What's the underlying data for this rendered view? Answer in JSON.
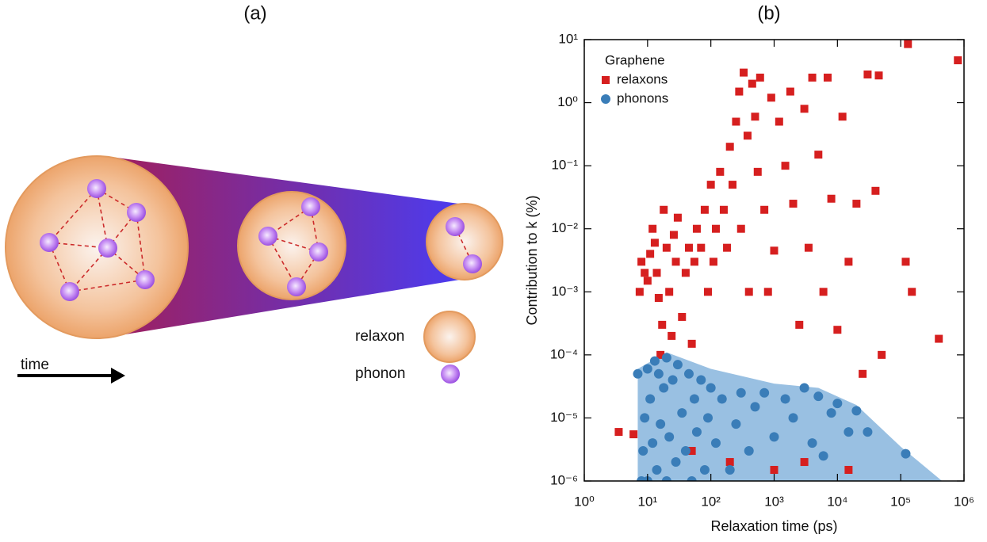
{
  "panels": [
    "(a)",
    "(b)"
  ],
  "diagram": {
    "legend": [
      "relaxon",
      "phonon"
    ],
    "arrow_label": "time"
  },
  "chart_data": {
    "type": "scatter",
    "x_label": "Relaxation time (ps)",
    "y_label": "Contribution to k (%)",
    "xscale": "log",
    "yscale": "log",
    "xlim": [
      1,
      1000000
    ],
    "ylim": [
      1e-06,
      10
    ],
    "xticks": [
      {
        "value": 1,
        "label": "10⁰"
      },
      {
        "value": 10,
        "label": "10¹"
      },
      {
        "value": 100,
        "label": "10²"
      },
      {
        "value": 1000,
        "label": "10³"
      },
      {
        "value": 10000,
        "label": "10⁴"
      },
      {
        "value": 100000,
        "label": "10⁵"
      },
      {
        "value": 1000000,
        "label": "10⁶"
      }
    ],
    "yticks": [
      {
        "value": 1e-06,
        "label": "10⁻⁶"
      },
      {
        "value": 1e-05,
        "label": "10⁻⁵"
      },
      {
        "value": 0.0001,
        "label": "10⁻⁴"
      },
      {
        "value": 0.001,
        "label": "10⁻³"
      },
      {
        "value": 0.01,
        "label": "10⁻²"
      },
      {
        "value": 0.1,
        "label": "10⁻¹"
      },
      {
        "value": 1,
        "label": "10⁰"
      },
      {
        "value": 10,
        "label": "10¹"
      }
    ],
    "legend_title": "Graphene",
    "legend": "upper left",
    "shaded_region": {
      "color": "#93bde0",
      "x": [
        7,
        7,
        20,
        100,
        1000,
        5000,
        20000,
        100000,
        450000
      ],
      "values": [
        1e-06,
        6e-05,
        0.00011,
        6e-05,
        3.5e-05,
        3e-05,
        1.6e-05,
        3.5e-06,
        1e-06
      ]
    },
    "series": [
      {
        "name": "relaxons",
        "color": "#d61f1f",
        "marker": "square",
        "x": [
          3.5,
          6,
          7.5,
          8,
          9,
          10,
          11,
          12,
          13,
          14,
          15,
          16,
          17,
          18,
          20,
          22,
          24,
          26,
          28,
          30,
          35,
          40,
          45,
          50,
          55,
          60,
          70,
          80,
          90,
          100,
          110,
          120,
          140,
          160,
          180,
          200,
          220,
          250,
          280,
          300,
          330,
          380,
          400,
          450,
          500,
          550,
          600,
          700,
          800,
          900,
          1000,
          1200,
          1500,
          1800,
          2000,
          2500,
          3000,
          3500,
          4000,
          5000,
          6000,
          7000,
          8000,
          10000,
          12000,
          15000,
          20000,
          25000,
          30000,
          40000,
          45000,
          50000,
          120000,
          130000,
          150000,
          400000,
          800000,
          1000,
          3000,
          15000,
          200,
          50
        ],
        "values": [
          6e-06,
          5.5e-06,
          0.001,
          0.003,
          0.002,
          0.0015,
          0.004,
          0.01,
          0.006,
          0.002,
          0.0008,
          0.0001,
          0.0003,
          0.02,
          0.005,
          0.001,
          0.0002,
          0.008,
          0.003,
          0.015,
          0.0004,
          0.002,
          0.005,
          0.00015,
          0.003,
          0.01,
          0.005,
          0.02,
          0.001,
          0.05,
          0.003,
          0.01,
          0.08,
          0.02,
          0.005,
          0.2,
          0.05,
          0.5,
          1.5,
          0.01,
          3,
          0.3,
          0.001,
          2,
          0.6,
          0.08,
          2.5,
          0.02,
          0.001,
          1.2,
          0.0045,
          0.5,
          0.1,
          1.5,
          0.025,
          0.0003,
          0.8,
          0.005,
          2.5,
          0.15,
          0.001,
          2.5,
          0.03,
          0.00025,
          0.6,
          0.003,
          0.025,
          5e-05,
          2.8,
          0.04,
          2.7,
          0.0001,
          0.003,
          8.5,
          0.001,
          0.00018,
          4.7,
          1.5e-06,
          2e-06,
          1.5e-06,
          2e-06,
          3e-06
        ]
      },
      {
        "name": "phonons",
        "color": "#3a7db8",
        "marker": "circle",
        "x": [
          7,
          8,
          8.5,
          9,
          10,
          10,
          11,
          12,
          13,
          14,
          15,
          16,
          18,
          20,
          20,
          22,
          25,
          28,
          30,
          35,
          40,
          45,
          50,
          55,
          60,
          70,
          80,
          90,
          100,
          120,
          150,
          200,
          250,
          300,
          400,
          500,
          700,
          1000,
          1500,
          2000,
          3000,
          4000,
          5000,
          6000,
          8000,
          10000,
          15000,
          20000,
          30000,
          120000
        ],
        "values": [
          5e-05,
          1e-06,
          3e-06,
          1e-05,
          6e-05,
          1e-06,
          2e-05,
          4e-06,
          8e-05,
          1.5e-06,
          5e-05,
          8e-06,
          3e-05,
          1e-06,
          9e-05,
          5e-06,
          4e-05,
          2e-06,
          7e-05,
          1.2e-05,
          3e-06,
          5e-05,
          1e-06,
          2e-05,
          6e-06,
          4e-05,
          1.5e-06,
          1e-05,
          3e-05,
          4e-06,
          2e-05,
          1.5e-06,
          8e-06,
          2.5e-05,
          3e-06,
          1.5e-05,
          2.5e-05,
          5e-06,
          2e-05,
          1e-05,
          3e-05,
          4e-06,
          2.2e-05,
          2.5e-06,
          1.2e-05,
          1.7e-05,
          6e-06,
          1.3e-05,
          6e-06,
          2.7e-06
        ]
      }
    ]
  }
}
